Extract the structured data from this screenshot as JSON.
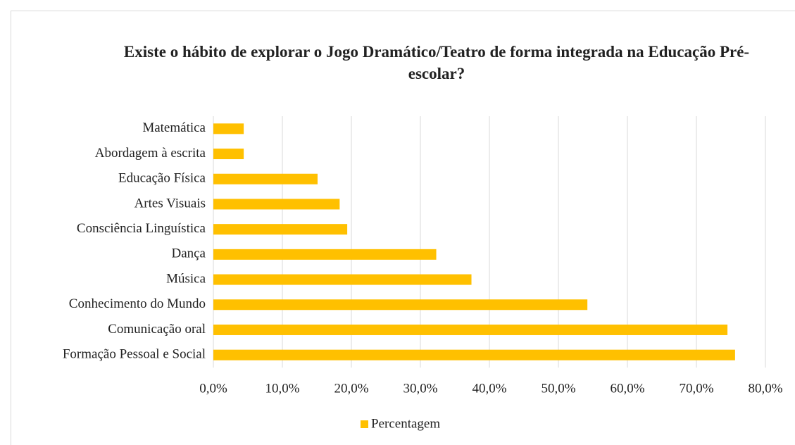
{
  "chart_data": {
    "type": "hbar",
    "title": "Existe o hábito de explorar o Jogo Dramático/Teatro de forma integrada na Educação Pré-escolar?",
    "categories": [
      "Matemática",
      "Abordagem à escrita",
      "Educação Física",
      "Artes Visuais",
      "Consciência Linguística",
      "Dança",
      "Música",
      "Conhecimento do Mundo",
      "Comunicação oral",
      "Formação Pessoal e Social"
    ],
    "series": [
      {
        "name": "Percentagem",
        "color": "#ffc000",
        "values": [
          4.4,
          4.4,
          15.1,
          18.3,
          19.4,
          32.3,
          37.4,
          54.2,
          74.5,
          75.6
        ]
      }
    ],
    "xlim": [
      0,
      80
    ],
    "xticks": [
      {
        "value": 0,
        "label": "0,0%"
      },
      {
        "value": 10,
        "label": "10,0%"
      },
      {
        "value": 20,
        "label": "20,0%"
      },
      {
        "value": 30,
        "label": "30,0%"
      },
      {
        "value": 40,
        "label": "40,0%"
      },
      {
        "value": 50,
        "label": "50,0%"
      },
      {
        "value": 60,
        "label": "60,0%"
      },
      {
        "value": 70,
        "label": "70,0%"
      },
      {
        "value": 80,
        "label": "80,0%"
      }
    ],
    "grid": true,
    "legend": "bottom"
  }
}
